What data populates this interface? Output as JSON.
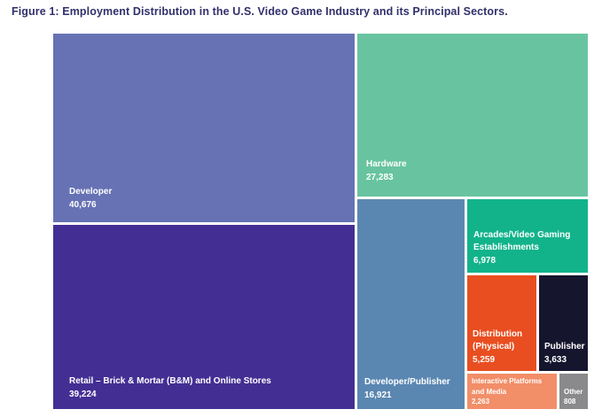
{
  "title": "Figure 1: Employment Distribution in the U.S. Video Game Industry and its Principal Sectors.",
  "chart_data": {
    "type": "treemap",
    "title": "Figure 1: Employment Distribution in the U.S. Video Game Industry and its Principal Sectors.",
    "value_meaning": "employment (number of jobs)",
    "legend_position": "none",
    "label_style": "bottom-left, white bold text inside each tile",
    "nodes": [
      {
        "label": "Developer",
        "value": 40676,
        "value_label": "40,676",
        "color": "#6672b4"
      },
      {
        "label": "Retail – Brick & Mortar (B&M) and Online Stores",
        "value": 39224,
        "value_label": "39,224",
        "color": "#432f93"
      },
      {
        "label": "Hardware",
        "value": 27283,
        "value_label": "27,283",
        "color": "#68c4a0"
      },
      {
        "label": "Developer/Publisher",
        "value": 16921,
        "value_label": "16,921",
        "color": "#5a87b1"
      },
      {
        "label": "Arcades/Video Gaming Establishments",
        "value": 6978,
        "value_label": "6,978",
        "color": "#12b38b"
      },
      {
        "label": "Distribution (Physical)",
        "value": 5259,
        "value_label": "5,259",
        "color": "#e94e20"
      },
      {
        "label": "Publisher",
        "value": 3633,
        "value_label": "3,633",
        "color": "#16152e"
      },
      {
        "label": "Interactive Platforms and Media",
        "value": 2263,
        "value_label": "2,263",
        "color": "#f28e68"
      },
      {
        "label": "Other",
        "value": 808,
        "value_label": "808",
        "color": "#8a8a8d"
      }
    ]
  }
}
